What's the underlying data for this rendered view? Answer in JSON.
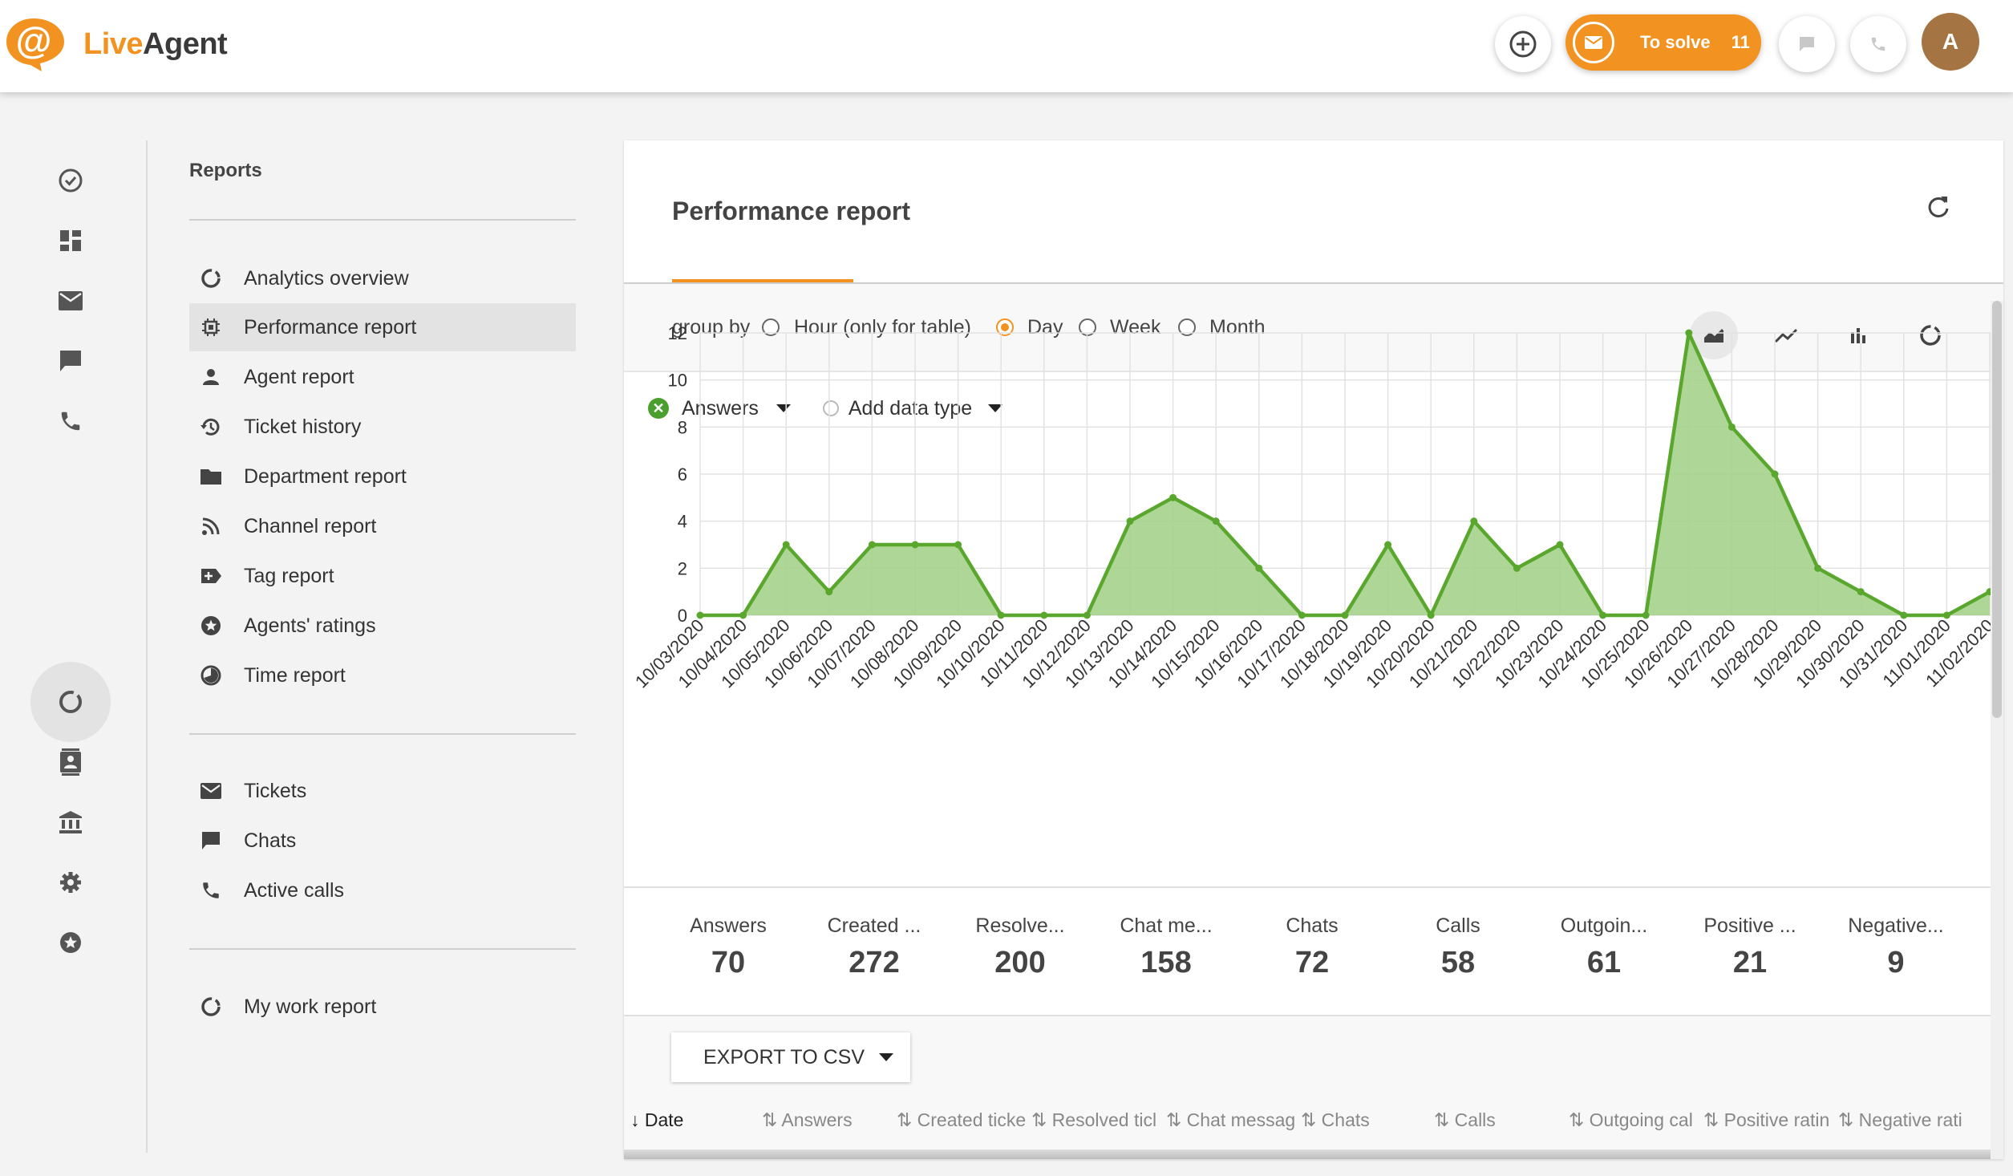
{
  "app": {
    "logo_live": "Live",
    "logo_agent": "Agent",
    "to_solve_label": "To solve",
    "to_solve_count": "11",
    "avatar_initial": "A"
  },
  "colors": {
    "accent": "#f29221",
    "chart_line": "#5aa72e",
    "chart_fill": "#a5d38c",
    "avatar": "#a47443"
  },
  "menu": {
    "title": "Reports",
    "reports": [
      {
        "label": "Analytics overview",
        "icon": "donut-chart-icon"
      },
      {
        "label": "Performance report",
        "icon": "chip-icon",
        "active": true
      },
      {
        "label": "Agent report",
        "icon": "person-icon"
      },
      {
        "label": "Ticket history",
        "icon": "history-icon"
      },
      {
        "label": "Department report",
        "icon": "folder-icon"
      },
      {
        "label": "Channel report",
        "icon": "rss-icon"
      },
      {
        "label": "Tag report",
        "icon": "tag-icon"
      },
      {
        "label": "Agents' ratings",
        "icon": "star-icon"
      },
      {
        "label": "Time report",
        "icon": "clock-icon"
      }
    ],
    "live": [
      {
        "label": "Tickets",
        "icon": "mail-icon"
      },
      {
        "label": "Chats",
        "icon": "chat-icon"
      },
      {
        "label": "Active calls",
        "icon": "phone-icon"
      }
    ],
    "mine": [
      {
        "label": "My work report",
        "icon": "donut-chart-icon"
      }
    ]
  },
  "report": {
    "title": "Performance report",
    "group_by_label": "group by",
    "group_options": [
      "Hour (only for table)",
      "Day",
      "Week",
      "Month"
    ],
    "group_selected": "Day",
    "series_label": "Answers",
    "add_data_type": "Add data type",
    "export_label": "EXPORT TO CSV"
  },
  "stats": [
    {
      "label": "Answers",
      "value": "70"
    },
    {
      "label": "Created ...",
      "value": "272"
    },
    {
      "label": "Resolve...",
      "value": "200"
    },
    {
      "label": "Chat me...",
      "value": "158"
    },
    {
      "label": "Chats",
      "value": "72"
    },
    {
      "label": "Calls",
      "value": "58"
    },
    {
      "label": "Outgoin...",
      "value": "61"
    },
    {
      "label": "Positive ...",
      "value": "21"
    },
    {
      "label": "Negative...",
      "value": "9"
    }
  ],
  "table_headers": [
    "Date",
    "Answers",
    "Created ticke",
    "Resolved ticl",
    "Chat messag",
    "Chats",
    "Calls",
    "Outgoing cal",
    "Positive ratin",
    "Negative rati"
  ],
  "chart_data": {
    "type": "area",
    "series": [
      {
        "name": "Answers",
        "values": [
          0,
          0,
          3,
          1,
          3,
          3,
          3,
          0,
          0,
          0,
          4,
          5,
          4,
          2,
          0,
          0,
          3,
          0,
          4,
          2,
          3,
          0,
          0,
          12,
          8,
          6,
          2,
          1,
          0,
          0,
          1
        ]
      }
    ],
    "x": [
      "10/03/2020",
      "10/04/2020",
      "10/05/2020",
      "10/06/2020",
      "10/07/2020",
      "10/08/2020",
      "10/09/2020",
      "10/10/2020",
      "10/11/2020",
      "10/12/2020",
      "10/13/2020",
      "10/14/2020",
      "10/15/2020",
      "10/16/2020",
      "10/17/2020",
      "10/18/2020",
      "10/19/2020",
      "10/20/2020",
      "10/21/2020",
      "10/22/2020",
      "10/23/2020",
      "10/24/2020",
      "10/25/2020",
      "10/26/2020",
      "10/27/2020",
      "10/28/2020",
      "10/29/2020",
      "10/30/2020",
      "10/31/2020",
      "11/01/2020",
      "11/02/2020"
    ],
    "yticks": [
      "0",
      "2",
      "4",
      "6",
      "8",
      "10",
      "12"
    ],
    "ylim": [
      0,
      12
    ],
    "grid": true
  }
}
